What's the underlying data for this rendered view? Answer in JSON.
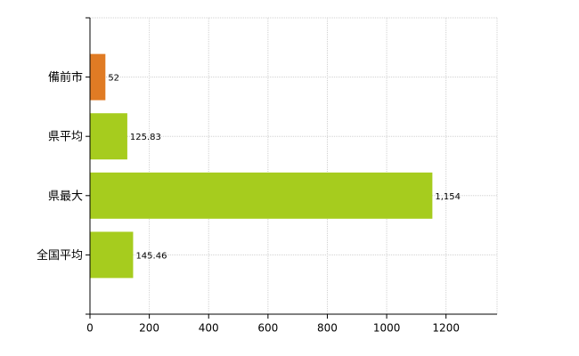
{
  "chart_data": {
    "type": "hbar",
    "categories": [
      "備前市",
      "県平均",
      "県最大",
      "全国平均"
    ],
    "values": [
      52,
      125.83,
      1154,
      145.46
    ],
    "value_labels": [
      "52",
      "125.83",
      "1,154",
      "145.46"
    ],
    "colors": [
      "#e07b24",
      "#a6cc1e",
      "#a6cc1e",
      "#a6cc1e"
    ],
    "xlim": [
      0,
      1372
    ],
    "xticks": [
      0,
      200,
      400,
      600,
      800,
      1000,
      1200
    ],
    "grid": true
  }
}
